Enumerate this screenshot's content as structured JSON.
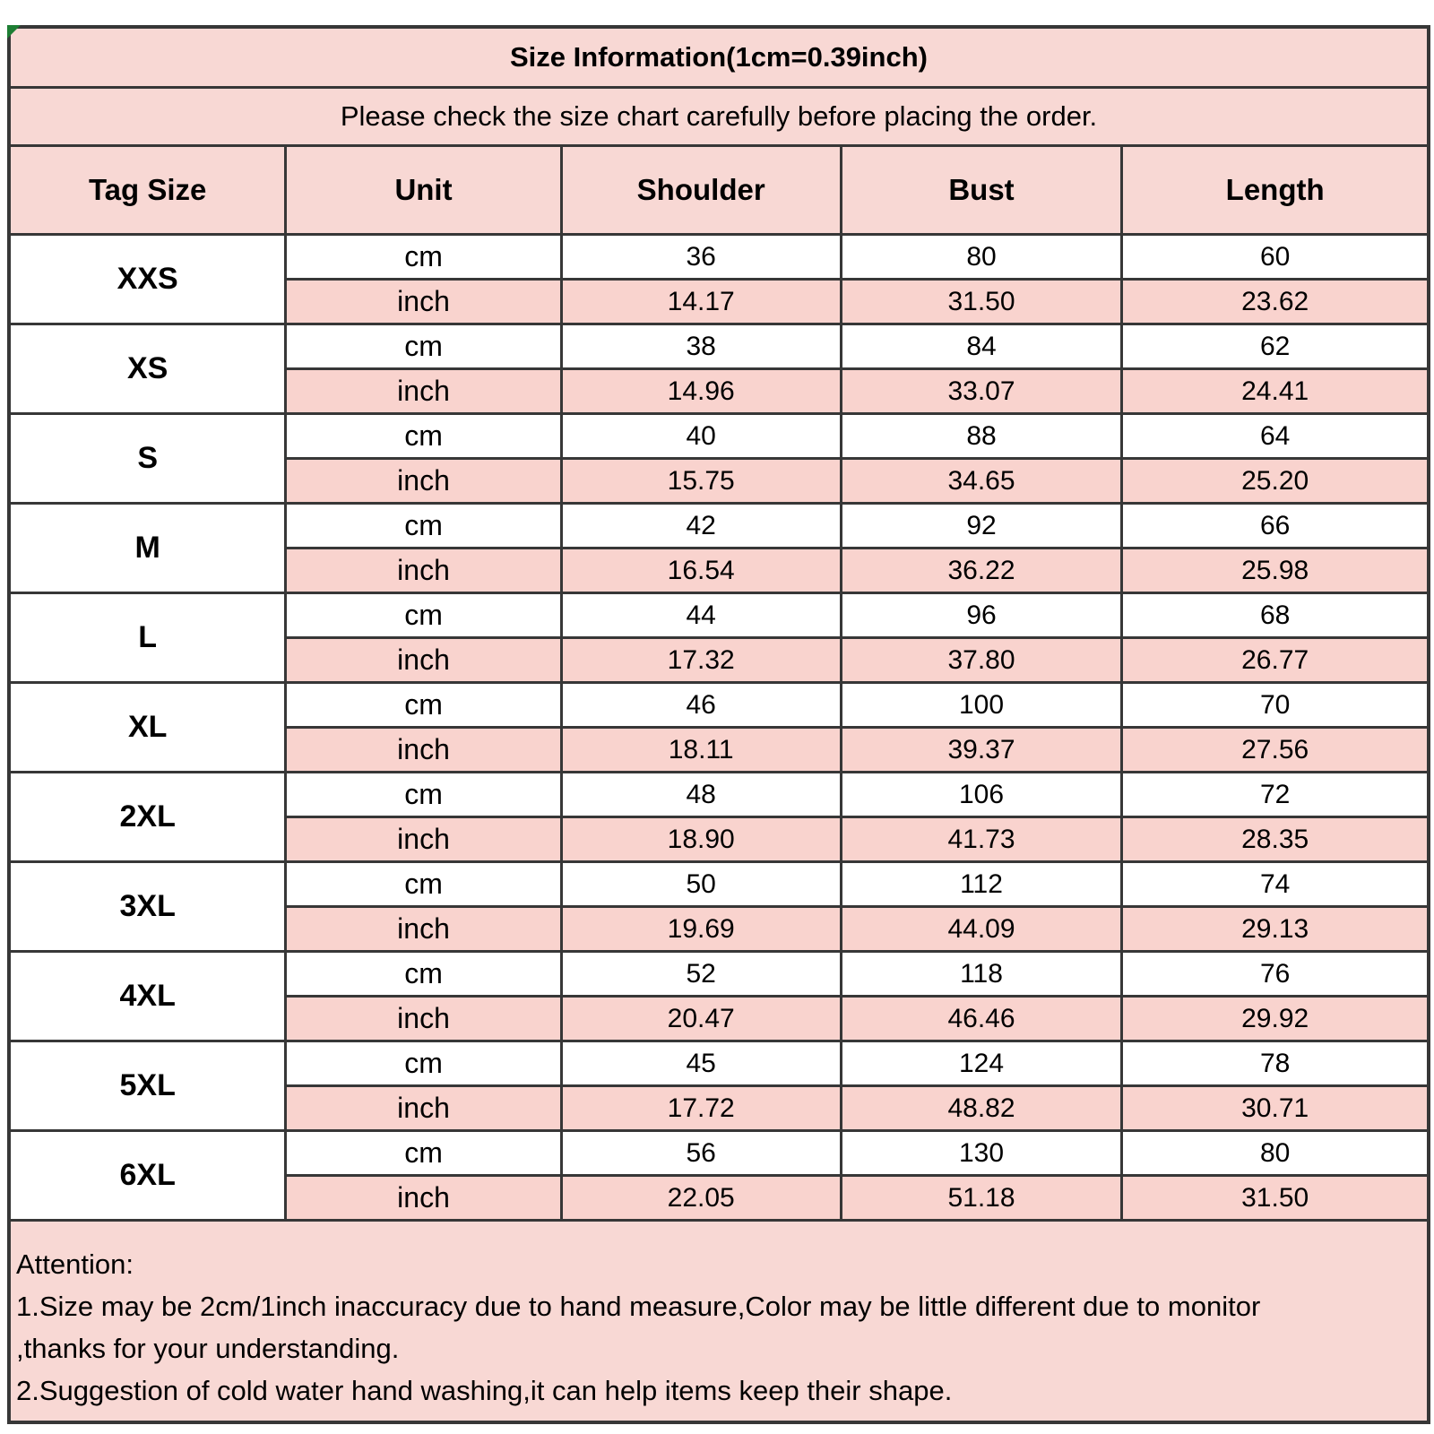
{
  "title": "Size Information(1cm=0.39inch)",
  "subtitle": "Please check the size chart carefully before placing the order.",
  "columns": [
    "Tag Size",
    "Unit",
    "Shoulder",
    "Bust",
    "Length"
  ],
  "units": {
    "cm": "cm",
    "inch": "inch"
  },
  "sizes": [
    {
      "tag": "XXS",
      "cm": [
        "36",
        "80",
        "60"
      ],
      "inch": [
        "14.17",
        "31.50",
        "23.62"
      ]
    },
    {
      "tag": "XS",
      "cm": [
        "38",
        "84",
        "62"
      ],
      "inch": [
        "14.96",
        "33.07",
        "24.41"
      ]
    },
    {
      "tag": "S",
      "cm": [
        "40",
        "88",
        "64"
      ],
      "inch": [
        "15.75",
        "34.65",
        "25.20"
      ]
    },
    {
      "tag": "M",
      "cm": [
        "42",
        "92",
        "66"
      ],
      "inch": [
        "16.54",
        "36.22",
        "25.98"
      ]
    },
    {
      "tag": "L",
      "cm": [
        "44",
        "96",
        "68"
      ],
      "inch": [
        "17.32",
        "37.80",
        "26.77"
      ]
    },
    {
      "tag": "XL",
      "cm": [
        "46",
        "100",
        "70"
      ],
      "inch": [
        "18.11",
        "39.37",
        "27.56"
      ]
    },
    {
      "tag": "2XL",
      "cm": [
        "48",
        "106",
        "72"
      ],
      "inch": [
        "18.90",
        "41.73",
        "28.35"
      ]
    },
    {
      "tag": "3XL",
      "cm": [
        "50",
        "112",
        "74"
      ],
      "inch": [
        "19.69",
        "44.09",
        "29.13"
      ]
    },
    {
      "tag": "4XL",
      "cm": [
        "52",
        "118",
        "76"
      ],
      "inch": [
        "20.47",
        "46.46",
        "29.92"
      ]
    },
    {
      "tag": "5XL",
      "cm": [
        "45",
        "124",
        "78"
      ],
      "inch": [
        "17.72",
        "48.82",
        "30.71"
      ]
    },
    {
      "tag": "6XL",
      "cm": [
        "56",
        "130",
        "80"
      ],
      "inch": [
        "22.05",
        "51.18",
        "31.50"
      ]
    }
  ],
  "attention": {
    "heading": "Attention:",
    "lines": [
      "1.Size may be 2cm/1inch inaccuracy due to hand measure,Color may be little different due to monitor",
      ",thanks for your understanding.",
      "2.Suggestion of cold water hand washing,it can help items keep their shape."
    ]
  },
  "colors": {
    "pink_light": "#f8d8d4",
    "pink_inch_row": "#f9d3ce",
    "border": "#373737",
    "text": "#000000",
    "corner_marker_green": "#1e7e34",
    "background": "#ffffff"
  }
}
